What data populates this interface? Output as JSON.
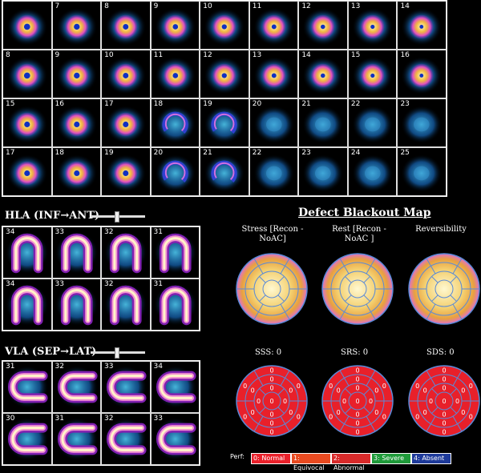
{
  "short_axis": {
    "rows": [
      [
        "",
        "7",
        "8",
        "9",
        "10",
        "11",
        "12",
        "13",
        "14"
      ],
      [
        "8",
        "9",
        "10",
        "11",
        "12",
        "13",
        "14",
        "15",
        "16"
      ],
      [
        "15",
        "16",
        "17",
        "18",
        "19",
        "20",
        "21",
        "22",
        "23"
      ],
      [
        "17",
        "18",
        "19",
        "20",
        "21",
        "22",
        "23",
        "24",
        "25"
      ]
    ]
  },
  "hla": {
    "label": "HLA (INF→ANT)",
    "rows": [
      [
        "34",
        "33",
        "32",
        "31"
      ],
      [
        "34",
        "33",
        "32",
        "31"
      ]
    ]
  },
  "vla": {
    "label": "VLA (SEP→LAT)",
    "rows": [
      [
        "31",
        "32",
        "33",
        "34"
      ],
      [
        "30",
        "31",
        "32",
        "33"
      ]
    ]
  },
  "blackout": {
    "title": "Defect Blackout Map",
    "columns": [
      {
        "title": "Stress [Recon - NoAC]",
        "score_label": "SSS: 0"
      },
      {
        "title": "Rest [Recon - NoAC ]",
        "score_label": "SRS: 0"
      },
      {
        "title": "Reversibility",
        "score_label": "SDS: 0"
      }
    ],
    "segment_value": "0"
  },
  "legend": {
    "label": "Perf:",
    "items": [
      {
        "text": "0: Normal",
        "color": "#e8202a"
      },
      {
        "text": "1: Equivocal",
        "color": "#e84a20"
      },
      {
        "text": "2: Abnormal",
        "color": "#d82a2a"
      },
      {
        "text": "3: Severe",
        "color": "#1f9a3a"
      },
      {
        "text": "4: Absent",
        "color": "#1e3a9a"
      }
    ]
  },
  "colors": {
    "polar_red": "#e8202a",
    "polar_line": "#5a8ad8",
    "cyan": "#1ab0e0",
    "blue": "#0a2c9a"
  }
}
